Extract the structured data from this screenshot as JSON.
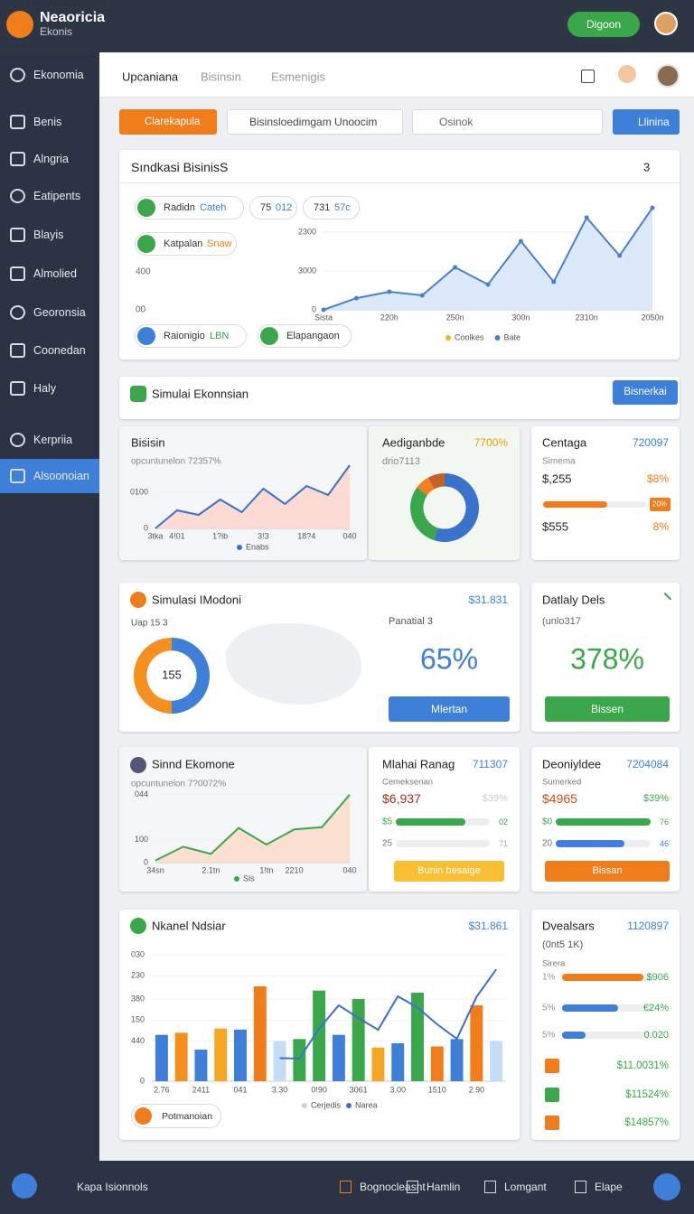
{
  "header": {
    "brand": "Neaoricia",
    "brand_sub": "Ekonis",
    "button": "Digoon"
  },
  "sidebar": {
    "items": [
      "Ekonomia",
      "Benis",
      "Alngria",
      "Eatipents",
      "Blayis",
      "Almolied",
      "Georonsia",
      "Coonedan",
      "Haly",
      "Kerpriia",
      "Alsoonoian"
    ],
    "active": 10
  },
  "tabs": {
    "items": [
      "Upcaniana",
      "Bisinsin",
      "Esmenigis"
    ],
    "active": 0
  },
  "toolbar": {
    "primary": "Clarekapula",
    "select": "Bisinsloedimgam Unoocim",
    "search": "Osinok",
    "action": "Llinina"
  },
  "overview": {
    "title": "Sındkasi BisinisS",
    "count": "3",
    "left_labels": [
      "400",
      "00"
    ],
    "pills": [
      {
        "label": "Radidn",
        "value": "Cateh"
      },
      {
        "label": "75",
        "value": "012"
      },
      {
        "label": "731",
        "value": "57c"
      },
      {
        "label": "Katpalan",
        "value": "Snaw"
      },
      {
        "label": "Raionigio",
        "value": "LBN"
      },
      {
        "label": "Elapangaon"
      }
    ]
  },
  "section": {
    "title": "Simulai Ekonnsian",
    "button": "Bisnerkai"
  },
  "centaga": {
    "title": "Centaga",
    "code": "720097",
    "label": "Simema",
    "amount": "$,255",
    "pct": "$8%",
    "bar": 62,
    "bar_tag": "20%",
    "amount2": "$555",
    "pct2": "8%"
  },
  "potential": {
    "title": "Panatial 3",
    "value": "65%",
    "button": "Mlertan"
  },
  "daily": {
    "title": "Datlaly Dels",
    "subtitle": "(unlo317",
    "value": "378%",
    "button": "Bissen"
  },
  "mlahai": {
    "title": "Mlahai Ranag",
    "code": "711307",
    "label": "Cemeksenan",
    "amount": "$6,937",
    "pct": "$39%",
    "bars": [
      {
        "label": "$5",
        "value": 74,
        "tag": "02",
        "color": "#3aa84a"
      },
      {
        "label": "25",
        "value": 100,
        "tag": "71",
        "color": "#eceef0"
      }
    ],
    "button": "Bunin besaige"
  },
  "deoni": {
    "title": "Deoniyldee",
    "code": "7204084",
    "label": "Sumerked",
    "amount": "$4965",
    "pct": "$39%",
    "bars": [
      {
        "label": "$0",
        "value": 100,
        "tag": "76",
        "color": "#3aa84a"
      },
      {
        "label": "20",
        "value": 72,
        "tag": "46",
        "color": "#3d7fd9"
      }
    ],
    "button": "Bissan"
  },
  "dvealsars": {
    "title": "Dvealsars",
    "code": "1120897",
    "subtitle": "(0nt5 1K)",
    "label": "Sirera",
    "rows": [
      {
        "label": "1%",
        "value": 90,
        "amount": "$906",
        "color": "#f07c1a"
      },
      {
        "label": "5%",
        "value": 62,
        "amount": "€24%",
        "color": "#3d7fd9"
      },
      {
        "label": "5%",
        "value": 26,
        "amount": "0.020",
        "color": "#3d7fd9"
      }
    ],
    "items": [
      {
        "text": "$11.0031%",
        "color": "#f07c1a"
      },
      {
        "text": "$11524%",
        "color": "#3aa84a"
      },
      {
        "text": "$14857%",
        "color": "#f07c1a"
      }
    ]
  },
  "footer": {
    "left": "Kapa Isionnols",
    "items": [
      "Bognocleasnt",
      "Hamlin",
      "Lomgant",
      "Elape"
    ]
  },
  "chart_data": [
    {
      "type": "line",
      "area": true,
      "fill": "#d6e5fa",
      "categories": [
        "Sista",
        null,
        "220h",
        null,
        "250n",
        null,
        "300n",
        null,
        "2310n",
        null,
        "2050n"
      ],
      "ylim": [
        0,
        4000
      ],
      "yticks": [
        0,
        {
          "value": 1400,
          "label": "3000"
        },
        {
          "value": 2800,
          "label": "2300"
        }
      ],
      "legend": [
        {
          "name": "Coolkes",
          "color": "#f2b418"
        }
      ],
      "series": [
        {
          "name": "Bate",
          "color": "#4a7fd0",
          "values": [
            0,
            420,
            650,
            520,
            1530,
            910,
            2470,
            1010,
            3320,
            1950,
            3670
          ]
        }
      ]
    },
    {
      "type": "line",
      "area": true,
      "fill": "#fbd6cc",
      "title": "Bisisin",
      "subtitle": "opcuntunelon 72357%",
      "categories": [
        "3tka",
        "4!01",
        null,
        "1?ib",
        null,
        "3!3",
        null,
        "18?4",
        null,
        "040"
      ],
      "ylim": [
        0,
        150
      ],
      "yticks": [
        0,
        {
          "value": 80,
          "label": "0100"
        }
      ],
      "series": [
        {
          "name": "Enabs",
          "color": "#3d6fd0",
          "values": [
            0,
            40,
            30,
            64,
            36,
            88,
            54,
            94,
            74,
            140
          ]
        }
      ]
    },
    {
      "type": "pie",
      "title": "Aediganbde",
      "subtitle": "drio7113",
      "annotation": "7700%",
      "hole": 0.62,
      "values": [
        55,
        30,
        7,
        8
      ],
      "colors": [
        "#3a73cc",
        "#3aa84a",
        "#f08020",
        "#c8602a"
      ]
    },
    {
      "type": "pie",
      "title": "Simulasi IModoni",
      "subtitle": "Uap 15 3",
      "annotation": "$31.831",
      "center": "155",
      "hole": 0.66,
      "values": [
        50,
        50
      ],
      "colors": [
        "#3d7fd9",
        "#f5901e"
      ]
    },
    {
      "type": "line",
      "area": true,
      "fill": "#fcdccb",
      "title": "Sinnd Ekomone",
      "subtitle": "opcuntunelon 7?0072%",
      "categories": [
        "34sn",
        null,
        "2.1tn",
        null,
        "1!tn",
        "2210",
        null,
        "040"
      ],
      "ylim": [
        0,
        110
      ],
      "yticks": [
        0,
        {
          "value": 32,
          "label": "100"
        },
        {
          "value": 94,
          "label": "044"
        }
      ],
      "series": [
        {
          "name": "Sls",
          "color": "#3aa84a",
          "values": [
            3,
            22,
            12,
            48,
            25,
            46,
            49,
            94
          ]
        }
      ]
    },
    {
      "type": "bar",
      "title": "Nkanel Ndsiar",
      "annotation": "$31.861",
      "button": "Potmanoian",
      "categories": [
        "2.76",
        null,
        "2411",
        null,
        "041",
        null,
        "3.30",
        null,
        "0!90",
        null,
        "3061",
        null,
        "3.00",
        null,
        "1510",
        null,
        "2.90",
        null
      ],
      "ylim": [
        0,
        600
      ],
      "yticks": [
        0,
        {
          "value": 190,
          "label": "440"
        },
        {
          "value": 290,
          "label": "150"
        },
        {
          "value": 390,
          "label": "380"
        },
        {
          "value": 500,
          "label": "230"
        },
        {
          "value": 600,
          "label": "030"
        }
      ],
      "series": [
        {
          "name": "Cerjedis",
          "kind": "bar",
          "color": "#c9d0da",
          "values": [
            220,
            230,
            150,
            250,
            245,
            450,
            190,
            200,
            430,
            220,
            390,
            160,
            180,
            420,
            165,
            200,
            360,
            190
          ],
          "colors": [
            "#3d7fd9",
            "#f5901e",
            "#3d7fd9",
            "#f5a623",
            "#3d7fd9",
            "#f07c1a",
            "#c5dcf5",
            "#3aa84a",
            "#3aa84a",
            "#3d7fd9",
            "#3aa84a",
            "#f5a623",
            "#3d7fd9",
            "#3aa84a",
            "#f07c1a",
            "#3d7fd9",
            "#f07c1a",
            "#c5dcf5"
          ]
        },
        {
          "name": "Narea",
          "kind": "line",
          "color": "#3d6fd0",
          "values": [
            null,
            null,
            null,
            null,
            null,
            null,
            110,
            107,
            250,
            360,
            300,
            244,
            403,
            350,
            270,
            201,
            400,
            531
          ]
        }
      ]
    }
  ]
}
